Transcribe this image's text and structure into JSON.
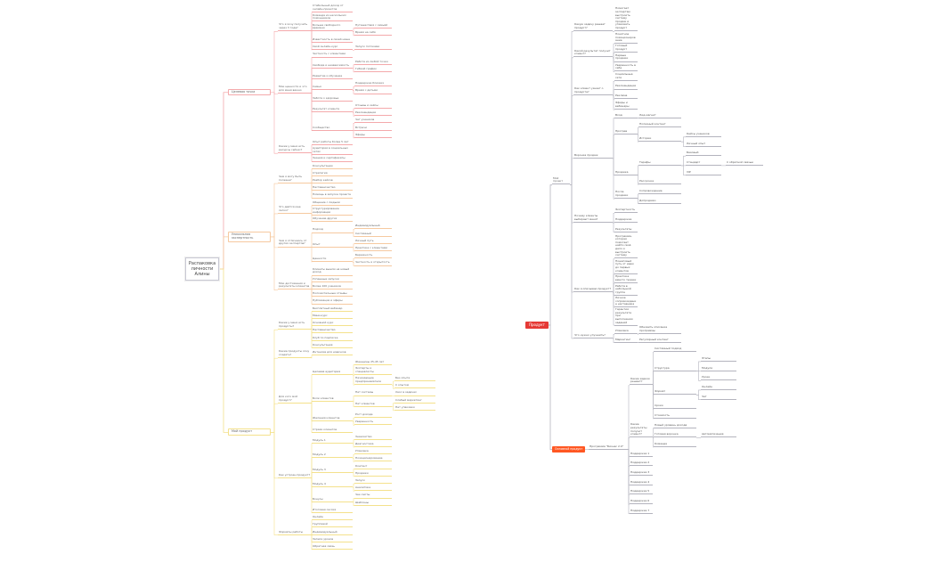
{
  "colors": {
    "branch_red": "#f4a9ab",
    "branch_orange": "#f6c9a0",
    "branch_yellow": "#f4e18c",
    "right_lines": "#b4b4be",
    "root_red": "#e53935",
    "root_orange": "#ff5722"
  },
  "left_map": {
    "root": "Распаковка личности Алины",
    "branches": [
      {
        "t": "Целевая точка",
        "color": "red",
        "c": [
          {
            "t": "Что я хочу получить через 3 года?",
            "c": [
              "Стабильный доход от онлайн-проектов",
              "Команда из нескольких помощников",
              {
                "t": "Больше свободного времени",
                "c": [
                  "Путешествия с семьёй",
                  "Время на себя"
                ]
              },
              "Известность в своей нише",
              {
                "t": "Свой онлайн-курс",
                "c": [
                  "Запуск потоками"
                ]
              }
            ]
          },
          {
            "t": "Мои ценности и что для меня важно",
            "c": [
              "Честность с клиентами",
              {
                "t": "Свобода и независимость",
                "c": [
                  "Работа из любой точки",
                  "Гибкий график"
                ]
              },
              "Развитие и обучение",
              {
                "t": "Семья",
                "c": [
                  "Поддержка близких",
                  "Время с детьми"
                ]
              },
              "Забота о здоровье",
              {
                "t": "Результат клиента",
                "c": [
                  "Отзывы и кейсы",
                  "Рекомендации"
                ]
              },
              {
                "t": "Сообщество",
                "c": [
                  "Чат учеников",
                  "Встречи",
                  "Эфиры"
                ]
              }
            ]
          },
          {
            "t": "Какие у меня есть ресурсы сейчас?",
            "c": [
              "Опыт работы более 5 лет",
              "Аудитория в социальных сетях",
              "Знания и сертификаты"
            ]
          }
        ]
      },
      {
        "t": "Уникальная экспертность",
        "color": "orange",
        "c": [
          {
            "t": "Чем я могу быть полезна?",
            "c": [
              "Консультации",
              "Стратегия",
              "Разбор кейсов",
              "Наставничество",
              "Помощь в запуске проекта"
            ]
          },
          {
            "t": "Что даётся мне легко?",
            "c": [
              "Общение с людьми",
              "Структурирование информации",
              "Обучение других"
            ]
          },
          {
            "t": "Чем я отличаюсь от других экспертов?",
            "c": [
              {
                "t": "Подход",
                "c": [
                  "Индивидуальный",
                  "Системный"
                ]
              },
              {
                "t": "Опыт",
                "c": [
                  "Личный путь",
                  "Практика с клиентами"
                ]
              },
              {
                "t": "Ценности",
                "c": [
                  "Бережность",
                  "Честность и открытость"
                ]
              }
            ]
          },
          {
            "t": "Мои достижения и результаты клиентов",
            "c": [
              "Клиенты вышли на новый доход",
              "Успешные запуски",
              "Более 100 учеников",
              "Положительные отзывы",
              "Публикации и эфиры"
            ]
          }
        ]
      },
      {
        "t": "Мой продукт",
        "color": "yellow",
        "c": [
          {
            "t": "Какие у меня есть продукты?",
            "c": [
              "Бесплатный вебинар",
              "Мини-курс",
              "Основной курс",
              "Наставничество",
              "Клуб по подписке",
              "Консультация"
            ]
          },
          {
            "t": "Какие продукты хочу создать?",
            "c": [
              "Интенсив для новичков"
            ]
          },
          {
            "t": "Для кого мой продукт?",
            "c": [
              {
                "t": "Целевая аудитория",
                "c": [
                  "Женщины 25-45 лет",
                  "Эксперты и специалисты",
                  {
                    "t": "Начинающие предприниматели",
                    "c": [
                      "Без опыта",
                      "С опытом"
                    ]
                  }
                ]
              },
              {
                "t": "Боли клиентов",
                "c": [
                  {
                    "t": "Нет системы",
                    "c": [
                      "Хаос в задачах"
                    ]
                  },
                  {
                    "t": "Нет клиентов",
                    "c": [
                      "Слабый маркетинг",
                      "Нет упаковки"
                    ]
                  }
                ]
              },
              {
                "t": "Желания клиентов",
                "c": [
                  "Рост дохода",
                  "Уверенность"
                ]
              },
              "Страхи клиентов"
            ]
          },
          {
            "t": "Как устроен продукт?",
            "c": [
              {
                "t": "Модуль 1",
                "c": [
                  "Знакомство",
                  "Диагностика"
                ]
              },
              {
                "t": "Модуль 2",
                "c": [
                  "Упаковка",
                  "Позиционирование"
                ]
              },
              {
                "t": "Модуль 3",
                "c": [
                  "Контент",
                  "Продажи"
                ]
              },
              {
                "t": "Модуль 4",
                "c": [
                  "Запуск",
                  "Аналитика"
                ]
              },
              {
                "t": "Бонусы",
                "c": [
                  "Чек-листы",
                  "Шаблоны"
                ]
              },
              "Итоговая сессия"
            ]
          },
          {
            "t": "Форматы работы",
            "c": [
              "Онлайн",
              "Групповой",
              "Индивидуальный",
              "Записи уроков",
              "Обратная связь"
            ]
          }
        ]
      }
    ]
  },
  "right_map": {
    "root": "Продукт",
    "c": [
      {
        "t": "Мой проект",
        "c": [
          {
            "t": "Какую задачу решает продукт?",
            "c": [
              "Помогает экспертам выстроить систему продаж и упаковать продукт"
            ]
          },
          {
            "t": "Какой результат получит клиент?",
            "c": [
              "Понятное позиционирование",
              "Готовый продукт",
              "Первые продажи",
              "Уверенность в себе"
            ]
          },
          {
            "t": "Как клиент узнает о продукте?",
            "c": [
              "Социальные сети",
              "Рекомендации",
              "Реклама",
              "Эфиры и вебинары"
            ]
          },
          {
            "t": "Воронка продаж",
            "c": [
              {
                "t": "Вход",
                "c": [
                  "Лид-магнит"
                ]
              },
              {
                "t": "Прогрев",
                "c": [
                  "Полезный контент",
                  {
                    "t": "Истории",
                    "c": [
                      "Кейсы учеников",
                      "Личный опыт"
                    ]
                  }
                ]
              },
              {
                "t": "Продажа",
                "c": [
                  {
                    "t": "Тарифы",
                    "c": [
                      "Базовый",
                      {
                        "t": "Стандарт",
                        "c": [
                          "С обратной связью"
                        ]
                      },
                      "VIP"
                    ]
                  },
                  "Рассрочка"
                ]
              },
              {
                "t": "После продажи",
                "c": [
                  "Сопровождение",
                  "Допродажи"
                ]
              }
            ]
          },
          {
            "t": "Почему клиенты выбирают меня?",
            "c": [
              "Экспертность",
              "Поддержка",
              "Результаты"
            ]
          },
          {
            "t": "Как я описываю продукт?",
            "c": [
              "Программа, которая помогает найти своё дело и выстроить систему",
              "Пошаговый путь от идеи до первых клиентов",
              "Практика вместо теории",
              "Работа в небольшой группе",
              "Личное сопровождение наставника",
              "Гарантия результата при выполнении заданий"
            ]
          },
          {
            "t": "Что нужно улучшить?",
            "c": [
              {
                "t": "Упаковка",
                "c": [
                  "Обновить описание программы"
                ]
              },
              {
                "t": "Маркетинг",
                "c": [
                  "Регулярный контент"
                ]
              }
            ]
          }
        ]
      },
      {
        "t": "Основной продукт",
        "orange": true,
        "c": [
          {
            "t": "Программа \"Бизнес 2.0\"",
            "c": [
              {
                "t": "Какие задачи решает?",
                "c": [
                  "Системный подход",
                  {
                    "t": "Структура",
                    "c": [
                      "Этапы",
                      "Модули",
                      "Уроки"
                    ]
                  },
                  {
                    "t": "Формат",
                    "c": [
                      "Онлайн",
                      "Чат"
                    ]
                  },
                  "Сроки",
                  "Стоимость"
                ]
              },
              {
                "t": "Какие результаты получит клиент?",
                "c": [
                  "Новый уровень дохода",
                  {
                    "t": "Готовая воронка",
                    "c": [
                      "Автоматизация"
                    ]
                  },
                  "Команда"
                ]
              },
              "Поддержка 1",
              "Поддержка 2",
              "Поддержка 3",
              "Поддержка 4",
              "Поддержка 5",
              "Поддержка 6",
              "Поддержка 7"
            ]
          }
        ]
      }
    ]
  }
}
